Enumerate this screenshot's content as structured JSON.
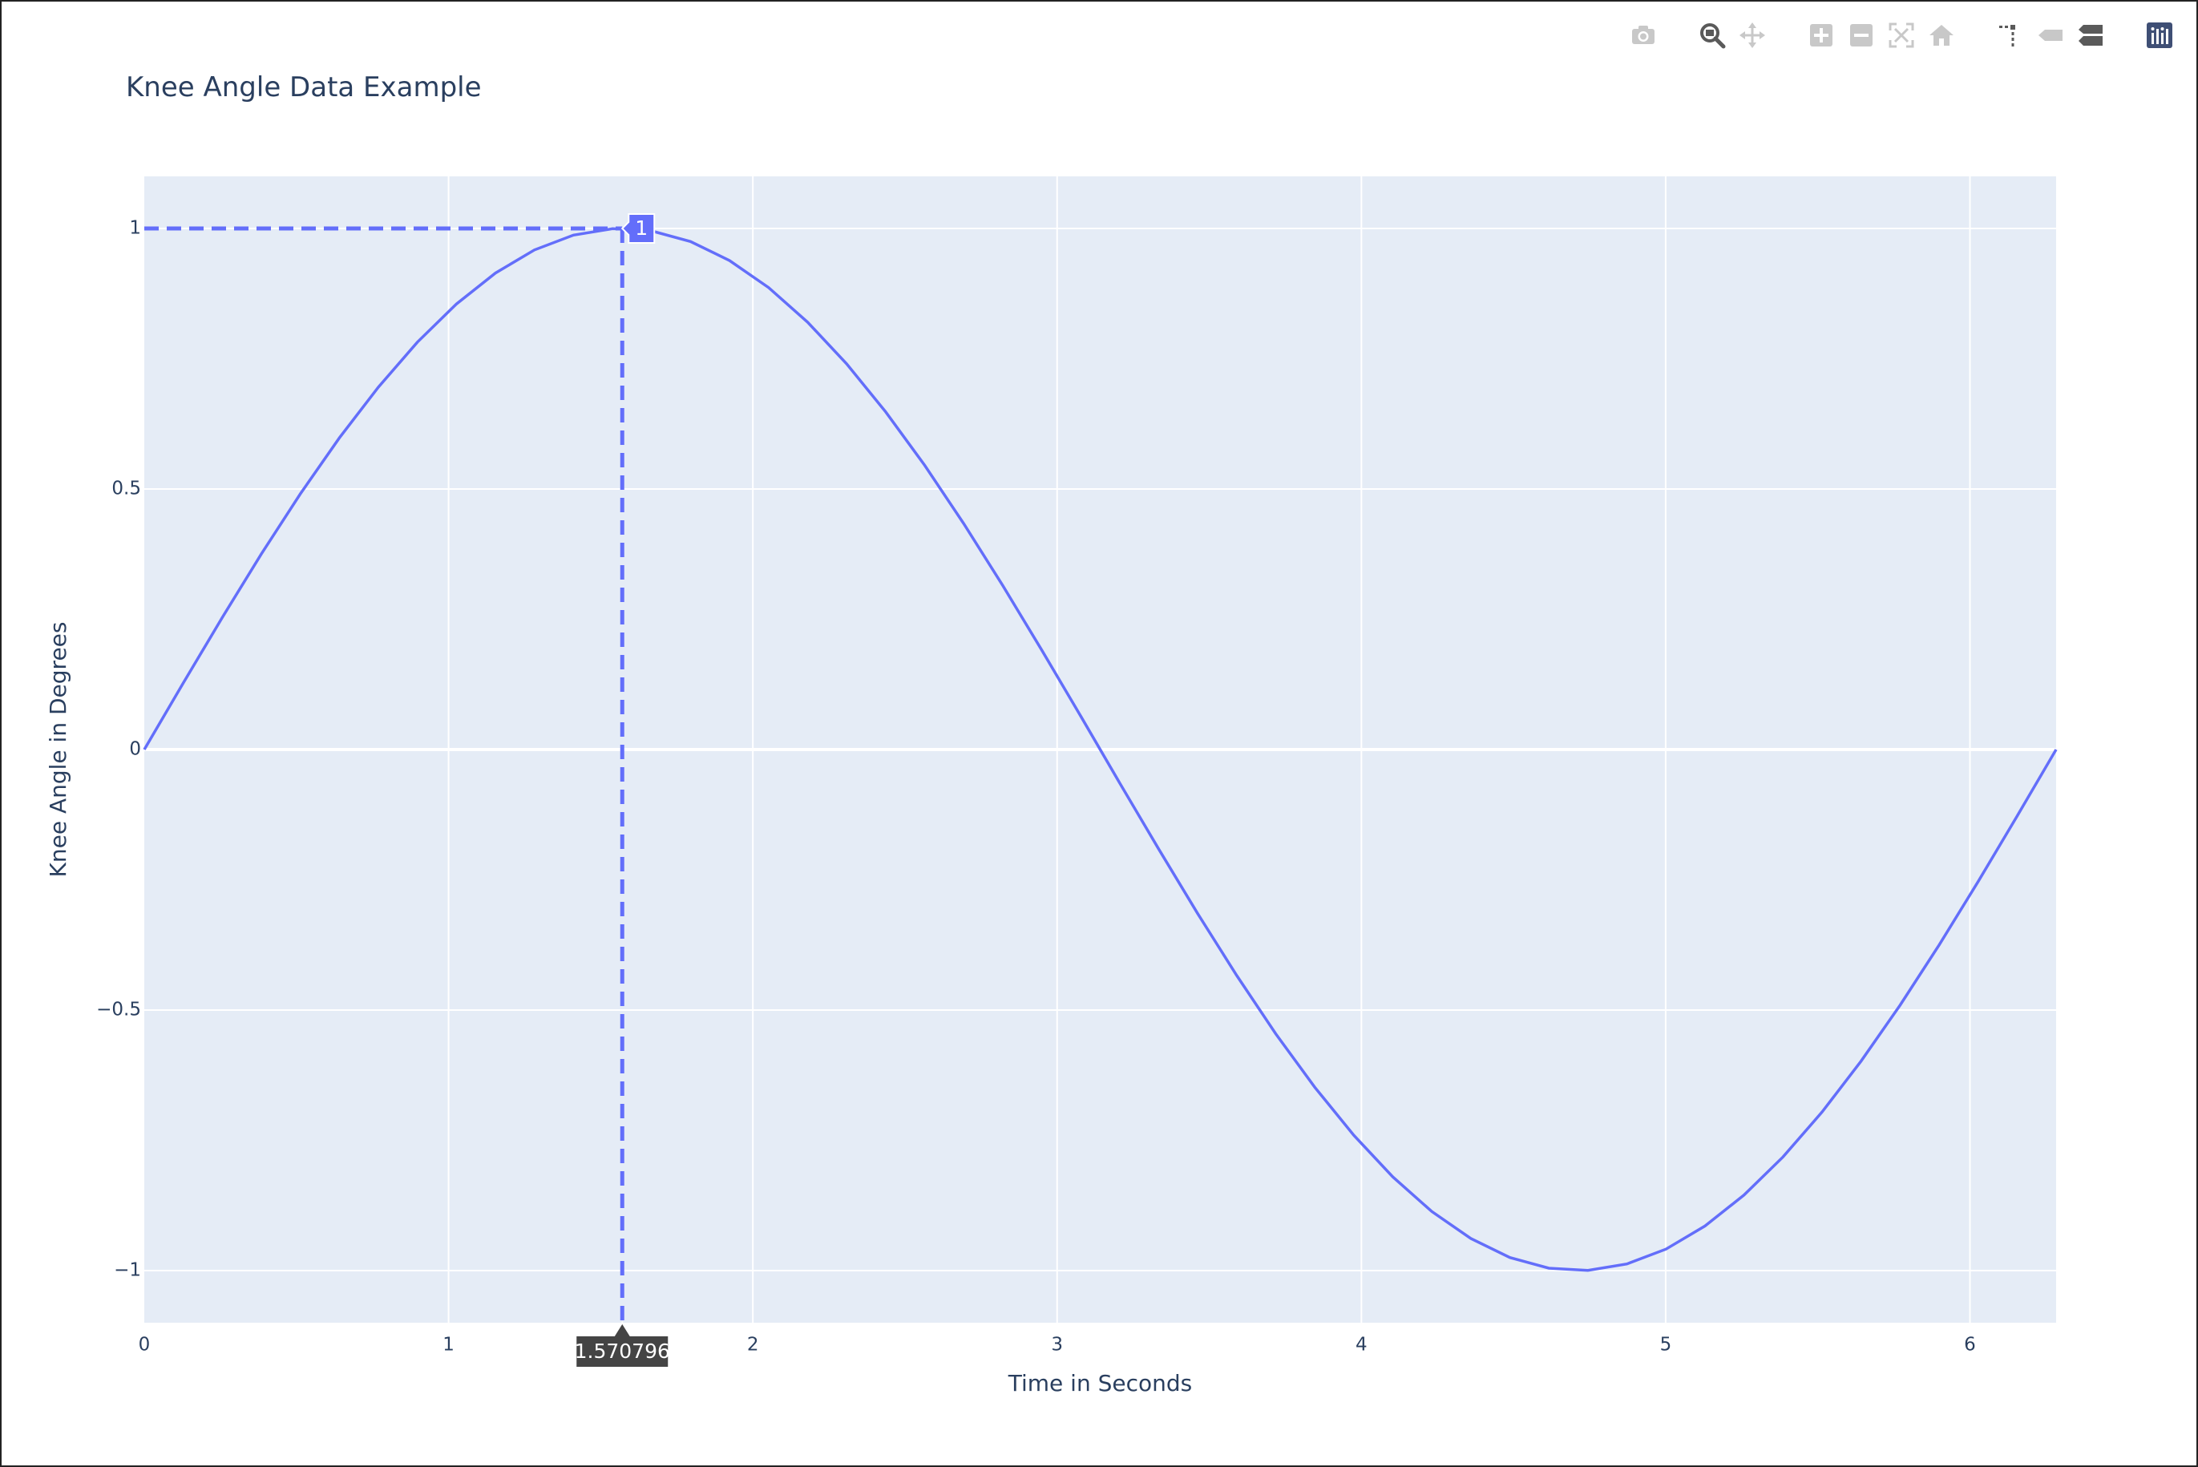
{
  "modebar": {
    "buttons": [
      {
        "name": "camera-icon"
      },
      {
        "name": "zoom-icon"
      },
      {
        "name": "pan-icon"
      },
      {
        "name": "zoom-in-icon"
      },
      {
        "name": "zoom-out-icon"
      },
      {
        "name": "autoscale-icon"
      },
      {
        "name": "home-icon"
      },
      {
        "name": "spike-lines-icon"
      },
      {
        "name": "hover-closest-icon"
      },
      {
        "name": "hover-compare-icon"
      },
      {
        "name": "plotly-logo-icon"
      }
    ],
    "inactive_color": "#c8c8c8",
    "active_color": "#5a5a5a",
    "logo_color": "#3f4f75"
  },
  "chart_data": {
    "type": "line",
    "title": "Knee Angle Data Example",
    "xlabel": "Time in Seconds",
    "ylabel": "Knee Angle in Degrees",
    "xlim": [
      0,
      6.283185
    ],
    "ylim": [
      -1.1,
      1.1
    ],
    "xticks": [
      0,
      1,
      2,
      3,
      4,
      5,
      6
    ],
    "yticks": [
      -1,
      -0.5,
      0,
      0.5,
      1
    ],
    "ytick_labels": [
      "−1",
      "−0.5",
      "0",
      "0.5",
      "1"
    ],
    "grid": true,
    "background_color": "#e5ecf6",
    "line_color": "#636efa",
    "series": [
      {
        "x": [
          0,
          0.1282,
          0.2565,
          0.3847,
          0.5129,
          0.6411,
          0.7694,
          0.8976,
          1.0258,
          1.1541,
          1.2823,
          1.4105,
          1.5387,
          1.667,
          1.7952,
          1.9234,
          2.0517,
          2.1799,
          2.3081,
          2.4363,
          2.5646,
          2.6928,
          2.821,
          2.9493,
          3.0775,
          3.2057,
          3.3339,
          3.4622,
          3.5904,
          3.7186,
          3.8468,
          3.9751,
          4.1033,
          4.2315,
          4.3598,
          4.488,
          4.6162,
          4.7444,
          4.8727,
          5.0009,
          5.1291,
          5.2574,
          5.3856,
          5.5138,
          5.642,
          5.7703,
          5.8985,
          6.0267,
          6.155,
          6.2832
        ],
        "y": [
          0,
          0.1279,
          0.2537,
          0.3753,
          0.4907,
          0.5981,
          0.6957,
          0.7818,
          0.8551,
          0.9145,
          0.9587,
          0.9872,
          0.9995,
          0.9954,
          0.9749,
          0.9385,
          0.8866,
          0.8202,
          0.7403,
          0.6482,
          0.5455,
          0.4339,
          0.3151,
          0.1911,
          0.0641,
          -0.0641,
          -0.1911,
          -0.3151,
          -0.4339,
          -0.5455,
          -0.6482,
          -0.7403,
          -0.8202,
          -0.8866,
          -0.9385,
          -0.9749,
          -0.9954,
          -0.9995,
          -0.9872,
          -0.9587,
          -0.9145,
          -0.8551,
          -0.7818,
          -0.6957,
          -0.5981,
          -0.4907,
          -0.3753,
          -0.2537,
          -0.1279,
          0
        ]
      }
    ],
    "hover": {
      "x": 1.570796,
      "y": 1,
      "x_label": "1.570796",
      "y_label": "1"
    }
  }
}
